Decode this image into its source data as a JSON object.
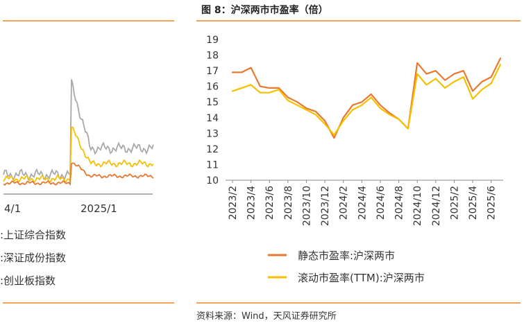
{
  "figure_title": "图 8：沪深两市市盈率（倍）",
  "source": "资料来源：Wind，天风证券研究所",
  "left_panel": {
    "x_ticks": [
      "4/1",
      "2025/1"
    ],
    "legend": [
      ":上证综合指数",
      ":深证成份指数",
      ":创业板指数"
    ],
    "colors": [
      "#e8782e",
      "#f5c000",
      "#a8a8a8"
    ]
  },
  "chart_data": {
    "type": "line",
    "title": "",
    "ylim": [
      10,
      19
    ],
    "y_ticks": [
      10,
      11,
      12,
      13,
      14,
      15,
      16,
      17,
      18,
      19
    ],
    "x_ticks": [
      "2023/2",
      "2023/4",
      "2023/6",
      "2023/8",
      "2023/10",
      "2023/12",
      "2024/2",
      "2024/4",
      "2024/6",
      "2024/8",
      "2024/10",
      "2024/12",
      "2025/2",
      "2025/4",
      "2025/6"
    ],
    "grid": false,
    "legend_position": "bottom",
    "series": [
      {
        "name": "静态市盈率:沪深两市",
        "color": "#e8782e",
        "points": [
          [
            "2023/2",
            16.9
          ],
          [
            "2023/3",
            16.9
          ],
          [
            "2023/4",
            17.2
          ],
          [
            "2023/5",
            16.0
          ],
          [
            "2023/6",
            15.9
          ],
          [
            "2023/7",
            15.9
          ],
          [
            "2023/8",
            15.3
          ],
          [
            "2023/9",
            15.0
          ],
          [
            "2023/10",
            14.6
          ],
          [
            "2023/11",
            14.4
          ],
          [
            "2023/12",
            13.8
          ],
          [
            "2024/1",
            12.7
          ],
          [
            "2024/2",
            14.0
          ],
          [
            "2024/3",
            14.8
          ],
          [
            "2024/4",
            15.0
          ],
          [
            "2024/5",
            15.5
          ],
          [
            "2024/6",
            14.8
          ],
          [
            "2024/7",
            14.3
          ],
          [
            "2024/8",
            13.9
          ],
          [
            "2024/9",
            13.3
          ],
          [
            "2024/10",
            17.5
          ],
          [
            "2024/11",
            16.8
          ],
          [
            "2024/12",
            17.0
          ],
          [
            "2025/1",
            16.4
          ],
          [
            "2025/2",
            16.8
          ],
          [
            "2025/3",
            17.0
          ],
          [
            "2025/4",
            15.7
          ],
          [
            "2025/5",
            16.3
          ],
          [
            "2025/6",
            16.6
          ],
          [
            "2025/7",
            17.8
          ]
        ]
      },
      {
        "name": "滚动市盈率(TTM):沪深两市",
        "color": "#f5c000",
        "points": [
          [
            "2023/2",
            15.7
          ],
          [
            "2023/3",
            15.9
          ],
          [
            "2023/4",
            16.1
          ],
          [
            "2023/5",
            15.6
          ],
          [
            "2023/6",
            15.6
          ],
          [
            "2023/7",
            15.8
          ],
          [
            "2023/8",
            15.1
          ],
          [
            "2023/9",
            14.8
          ],
          [
            "2023/10",
            14.5
          ],
          [
            "2023/11",
            14.2
          ],
          [
            "2023/12",
            13.6
          ],
          [
            "2024/1",
            12.9
          ],
          [
            "2024/2",
            13.8
          ],
          [
            "2024/3",
            14.5
          ],
          [
            "2024/4",
            14.8
          ],
          [
            "2024/5",
            15.3
          ],
          [
            "2024/6",
            14.6
          ],
          [
            "2024/7",
            14.2
          ],
          [
            "2024/8",
            13.9
          ],
          [
            "2024/9",
            13.3
          ],
          [
            "2024/10",
            16.8
          ],
          [
            "2024/11",
            16.1
          ],
          [
            "2024/12",
            16.5
          ],
          [
            "2025/1",
            15.9
          ],
          [
            "2025/2",
            16.3
          ],
          [
            "2025/3",
            16.6
          ],
          [
            "2025/4",
            15.2
          ],
          [
            "2025/5",
            15.8
          ],
          [
            "2025/6",
            16.2
          ],
          [
            "2025/7",
            17.4
          ]
        ]
      }
    ]
  }
}
